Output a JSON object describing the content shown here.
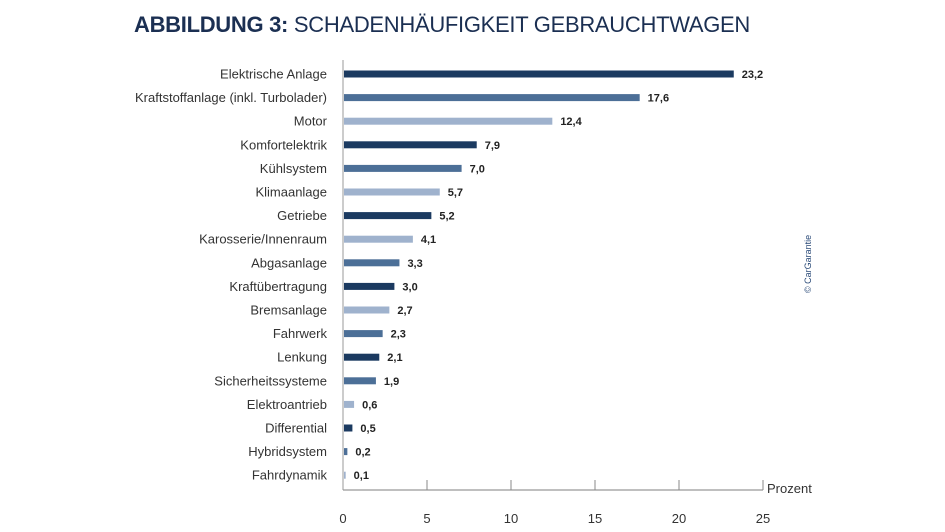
{
  "chart_data": {
    "type": "bar",
    "orientation": "horizontal",
    "title_bold": "ABBILDUNG 3:",
    "title": "SCHADENHÄUFIGKEIT GEBRAUCHTWAGEN",
    "xlabel": "Prozent",
    "xlim": [
      0,
      25
    ],
    "xticks": [
      "0",
      "5",
      "10",
      "15",
      "20",
      "25"
    ],
    "grid": false,
    "categories": [
      "Elektrische Anlage",
      "Kraftstoffanlage (inkl. Turbolader)",
      "Motor",
      "Komfortelektrik",
      "Kühlsystem",
      "Klimaanlage",
      "Getriebe",
      "Karosserie/Innenraum",
      "Abgasanlage",
      "Kraftübertragung",
      "Bremsanlage",
      "Fahrwerk",
      "Lenkung",
      "Sicherheitssysteme",
      "Elektroantrieb",
      "Differential",
      "Hybridsystem",
      "Fahrdynamik"
    ],
    "values": [
      23.2,
      17.6,
      12.4,
      7.9,
      7.0,
      5.7,
      5.2,
      4.1,
      3.3,
      3.0,
      2.7,
      2.3,
      2.1,
      1.9,
      0.6,
      0.5,
      0.2,
      0.1
    ],
    "value_labels": [
      "23,2",
      "17,6",
      "12,4",
      "7,9",
      "7,0",
      "5,7",
      "5,2",
      "4,1",
      "3,3",
      "3,0",
      "2,7",
      "2,3",
      "2,1",
      "1,9",
      "0,6",
      "0,5",
      "0,2",
      "0,1"
    ],
    "bar_colors": [
      "#1b3a60",
      "#4c6f97",
      "#9fb2cd",
      "#1b3a60",
      "#4c6f97",
      "#9fb2cd",
      "#1b3a60",
      "#9fb2cd",
      "#4c6f97",
      "#1b3a60",
      "#9fb2cd",
      "#4c6f97",
      "#1b3a60",
      "#4c6f97",
      "#9fb2cd",
      "#1b3a60",
      "#4c6f97",
      "#9fb2cd"
    ],
    "source": "© CarGarantie"
  }
}
